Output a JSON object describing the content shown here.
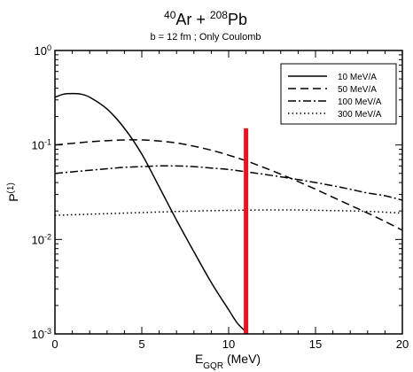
{
  "chart_data": {
    "type": "line",
    "title": {
      "parts": [
        {
          "text": "40",
          "sup": true
        },
        {
          "text": "Ar + ",
          "sup": false
        },
        {
          "text": "208",
          "sup": true
        },
        {
          "text": "Pb",
          "sup": false
        }
      ]
    },
    "subtitle": "b = 12 fm ; Only Coulomb",
    "xlabel": {
      "main": "E",
      "sub": "GQR",
      "rest": " (MeV)"
    },
    "ylabel": {
      "main": "P",
      "sup": "(1)"
    },
    "x_range": [
      0,
      20
    ],
    "y_range": [
      0.001,
      1
    ],
    "y_scale": "log",
    "x_ticks": [
      0,
      5,
      10,
      15,
      20
    ],
    "y_ticks": [
      {
        "value": 1,
        "base": "10",
        "exp": "0"
      },
      {
        "value": 0.1,
        "base": "10",
        "exp": "-1"
      },
      {
        "value": 0.01,
        "base": "10",
        "exp": "-2"
      },
      {
        "value": 0.001,
        "base": "10",
        "exp": "-3"
      }
    ],
    "grid": false,
    "legend_position": "top-right",
    "series": [
      {
        "name": "10 MeV/A",
        "style": "solid",
        "color": "#000000",
        "x": [
          0,
          0.5,
          1,
          1.5,
          2,
          3,
          4,
          5,
          6,
          7,
          8,
          9,
          10,
          10.5,
          11,
          11.1
        ],
        "y": [
          0.32,
          0.345,
          0.35,
          0.345,
          0.32,
          0.24,
          0.15,
          0.08,
          0.036,
          0.016,
          0.0074,
          0.0035,
          0.0018,
          0.0013,
          0.00105,
          0.001
        ]
      },
      {
        "name": "50 MeV/A",
        "style": "dashed",
        "color": "#000000",
        "x": [
          0,
          1,
          2,
          3,
          4,
          5,
          6,
          7,
          8,
          9,
          10,
          11,
          12,
          13,
          14,
          15,
          16,
          17,
          18,
          19,
          20
        ],
        "y": [
          0.1,
          0.104,
          0.108,
          0.111,
          0.113,
          0.113,
          0.11,
          0.105,
          0.097,
          0.088,
          0.078,
          0.068,
          0.058,
          0.049,
          0.041,
          0.034,
          0.028,
          0.023,
          0.019,
          0.0155,
          0.0125
        ]
      },
      {
        "name": "100 MeV/A",
        "style": "dashdot",
        "color": "#000000",
        "x": [
          0,
          1,
          2,
          3,
          4,
          5,
          6,
          7,
          8,
          9,
          10,
          11,
          12,
          13,
          14,
          15,
          16,
          17,
          18,
          19,
          20
        ],
        "y": [
          0.05,
          0.052,
          0.054,
          0.056,
          0.058,
          0.059,
          0.06,
          0.06,
          0.059,
          0.057,
          0.055,
          0.052,
          0.049,
          0.046,
          0.043,
          0.04,
          0.037,
          0.034,
          0.031,
          0.029,
          0.026
        ]
      },
      {
        "name": "300 MeV/A",
        "style": "dotted",
        "color": "#000000",
        "x": [
          0,
          2,
          4,
          6,
          8,
          10,
          12,
          14,
          16,
          18,
          20
        ],
        "y": [
          0.018,
          0.0185,
          0.019,
          0.0195,
          0.02,
          0.0203,
          0.0205,
          0.0205,
          0.0202,
          0.0198,
          0.019
        ]
      }
    ],
    "marker_line": {
      "x": 11,
      "y_from": 0.001,
      "y_to": 0.15,
      "color": "#e8131f"
    }
  }
}
